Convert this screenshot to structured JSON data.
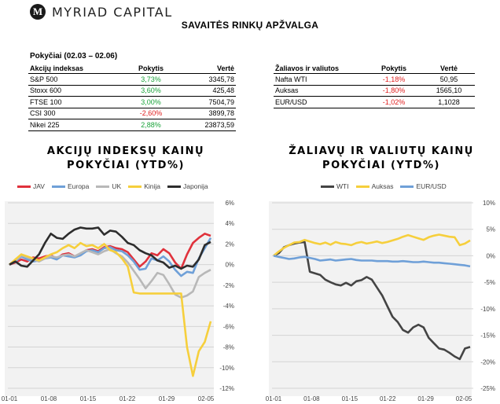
{
  "brand": {
    "mark": "M",
    "name": "MYRIAD CAPITAL"
  },
  "report_title": "SAVAITĖS RINKŲ APŽVALGA",
  "changes_title": "Pokyčiai (02.03 – 02.06)",
  "indices_table": {
    "headers": [
      "Akcijų indeksas",
      "Pokytis",
      "Vertė"
    ],
    "rows": [
      {
        "name": "S&P 500",
        "change": "3,73%",
        "value": "3345,78",
        "dir": "pos"
      },
      {
        "name": "Stoxx 600",
        "change": "3,60%",
        "value": "425,48",
        "dir": "pos"
      },
      {
        "name": "FTSE 100",
        "change": "3,00%",
        "value": "7504,79",
        "dir": "pos"
      },
      {
        "name": "CSI 300",
        "change": "-2,60%",
        "value": "3899,78",
        "dir": "neg"
      },
      {
        "name": "Nikei 225",
        "change": "2,88%",
        "value": "23873,59",
        "dir": "pos"
      }
    ]
  },
  "commodities_table": {
    "headers": [
      "Žaliavos ir valiutos",
      "Pokytis",
      "Vertė"
    ],
    "rows": [
      {
        "name": "Nafta WTI",
        "change": "-1,18%",
        "value": "50,95",
        "dir": "neg"
      },
      {
        "name": "Auksas",
        "change": "-1,80%",
        "value": "1565,10",
        "dir": "neg"
      },
      {
        "name": "EUR/USD",
        "change": "-1,02%",
        "value": "1,1028",
        "dir": "neg"
      }
    ]
  },
  "colors": {
    "positive": "#1aa33a",
    "negative": "#e02020",
    "grid_bg": "#f2f2f2",
    "grid_line": "#d4d4d4"
  },
  "chart_data": [
    {
      "type": "line",
      "title_line1": "AKCIJŲ INDEKSŲ KAINŲ",
      "title_line2": "POKYČIAI (YTD%)",
      "x_ticks": [
        "01-01",
        "01-08",
        "01-15",
        "01-22",
        "01-29",
        "02-05"
      ],
      "y_ticks": [
        "6%",
        "4%",
        "2%",
        "0%",
        "-2%",
        "-4%",
        "-6%",
        "-8%",
        "-10%",
        "-12%"
      ],
      "ylim": [
        -12,
        6
      ],
      "y_axis_side": "right",
      "legend_position": "top",
      "series": [
        {
          "name": "JAV",
          "color": "#e0323c",
          "values": [
            0,
            0.2,
            0.5,
            0.3,
            0.7,
            0.6,
            0.8,
            0.9,
            0.6,
            1.0,
            1.1,
            0.8,
            1.0,
            1.4,
            1.5,
            1.3,
            1.7,
            1.8,
            1.6,
            1.5,
            1.2,
            0.5,
            -0.2,
            0.3,
            1.1,
            0.9,
            1.5,
            1.1,
            0.2,
            -0.4,
            1.0,
            2.1,
            2.6,
            3.0,
            2.8
          ]
        },
        {
          "name": "Europa",
          "color": "#6fa0d8",
          "values": [
            0,
            0.3,
            0.8,
            0.5,
            0.3,
            0.4,
            0.6,
            0.7,
            0.5,
            0.9,
            0.8,
            0.7,
            0.9,
            1.3,
            1.4,
            1.2,
            1.6,
            1.7,
            1.4,
            1.3,
            0.9,
            0.3,
            -0.5,
            -0.4,
            0.6,
            0.4,
            0.8,
            0.3,
            -0.5,
            -1.1,
            -0.7,
            -0.8,
            0.6,
            1.6,
            2.6
          ]
        },
        {
          "name": "UK",
          "color": "#b8b8b8",
          "values": [
            0,
            0.4,
            0.9,
            0.7,
            0.5,
            0.3,
            0.6,
            0.8,
            0.7,
            0.9,
            1.0,
            0.8,
            1.1,
            1.4,
            1.2,
            1.0,
            1.3,
            1.5,
            1.1,
            0.8,
            0.2,
            -0.6,
            -1.4,
            -2.3,
            -1.6,
            -0.8,
            -1.0,
            -1.9,
            -2.9,
            -3.2,
            -3.0,
            -2.6,
            -1.2,
            -0.8,
            -0.5
          ]
        },
        {
          "name": "Kinija",
          "color": "#f6cf3c",
          "values": [
            0,
            0.5,
            1.0,
            0.8,
            0.6,
            0.4,
            0.7,
            1.0,
            1.2,
            1.6,
            1.9,
            1.6,
            2.1,
            1.8,
            1.9,
            1.6,
            2.0,
            1.4,
            1.2,
            0.6,
            -0.2,
            -2.7,
            -2.8,
            -2.8,
            -2.8,
            -2.8,
            -2.8,
            -2.8,
            -2.8,
            -2.8,
            -8.0,
            -10.8,
            -8.4,
            -7.5,
            -5.5
          ]
        },
        {
          "name": "Japonija",
          "color": "#2d2d2d",
          "values": [
            0,
            0.3,
            -0.1,
            -0.2,
            0.4,
            1.0,
            2.1,
            3.0,
            2.6,
            2.5,
            3.0,
            3.4,
            3.6,
            3.5,
            3.5,
            3.6,
            2.9,
            3.3,
            3.2,
            2.7,
            2.1,
            1.9,
            1.4,
            1.1,
            0.9,
            0.4,
            0.2,
            -0.3,
            -0.1,
            -0.4,
            -0.1,
            -0.2,
            0.5,
            1.9,
            2.2
          ]
        }
      ]
    },
    {
      "type": "line",
      "title_line1": "ŽALIAVŲ IR VALIUTŲ KAINŲ",
      "title_line2": "POKYČIAI (YTD%)",
      "x_ticks": [
        "01-01",
        "01-08",
        "01-15",
        "01-22",
        "01-29",
        "02-05"
      ],
      "y_ticks": [
        "10%",
        "5%",
        "0%",
        "-5%",
        "-10%",
        "-15%",
        "-20%",
        "-25%"
      ],
      "ylim": [
        -25,
        10
      ],
      "y_axis_side": "right",
      "legend_position": "top",
      "series": [
        {
          "name": "WTI",
          "color": "#444444",
          "values": [
            0,
            0.5,
            1.6,
            2.0,
            2.3,
            2.5,
            2.6,
            -3.0,
            -3.3,
            -3.6,
            -4.5,
            -5.0,
            -5.4,
            -5.6,
            -5.1,
            -5.6,
            -4.8,
            -4.6,
            -4.0,
            -4.5,
            -6.0,
            -7.5,
            -9.5,
            -11.5,
            -12.5,
            -14.0,
            -14.5,
            -13.5,
            -13.0,
            -13.5,
            -15.5,
            -16.5,
            -17.5,
            -17.7,
            -18.3,
            -19.0,
            -19.5,
            -17.5,
            -17.2
          ]
        },
        {
          "name": "Auksas",
          "color": "#f6cf3c",
          "values": [
            0,
            0.8,
            1.5,
            2.0,
            2.5,
            2.6,
            3.0,
            2.7,
            2.4,
            2.2,
            2.5,
            2.1,
            2.6,
            2.3,
            2.2,
            2.0,
            2.4,
            2.6,
            2.3,
            2.5,
            2.7,
            2.4,
            2.6,
            2.9,
            3.2,
            3.6,
            3.9,
            3.6,
            3.3,
            3.0,
            3.5,
            3.8,
            4.0,
            3.8,
            3.6,
            3.5,
            2.0,
            2.3,
            2.9
          ]
        },
        {
          "name": "EUR/USD",
          "color": "#6fa0d8",
          "values": [
            0,
            -0.2,
            -0.4,
            -0.6,
            -0.5,
            -0.3,
            -0.2,
            -0.4,
            -0.6,
            -0.9,
            -0.8,
            -0.7,
            -0.9,
            -0.8,
            -0.7,
            -0.6,
            -0.8,
            -0.9,
            -0.9,
            -0.9,
            -1.0,
            -1.0,
            -1.0,
            -1.1,
            -1.1,
            -1.0,
            -1.1,
            -1.2,
            -1.2,
            -1.1,
            -1.2,
            -1.3,
            -1.3,
            -1.4,
            -1.5,
            -1.6,
            -1.7,
            -1.8,
            -2.0
          ]
        }
      ]
    }
  ]
}
